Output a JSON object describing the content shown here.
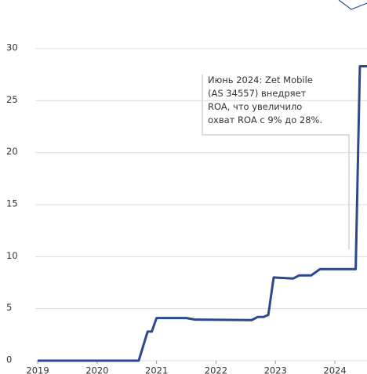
{
  "chart_data": {
    "type": "line",
    "annotation": [
      "Июнь 2024: Zet Mobile",
      "(AS 34557) внедряет",
      "ROA, что увеличило",
      "охват ROA с 9% до 28%."
    ],
    "x": [
      2019.0,
      2020.7,
      2020.85,
      2020.92,
      2021.0,
      2021.5,
      2021.65,
      2022.6,
      2022.7,
      2022.8,
      2022.88,
      2022.97,
      2023.3,
      2023.4,
      2023.6,
      2023.75,
      2024.1,
      2024.35,
      2024.42,
      2024.54
    ],
    "series": [
      {
        "color": "#2b4a8e",
        "values": [
          0,
          0,
          2.8,
          2.8,
          4.1,
          4.1,
          3.95,
          3.9,
          4.2,
          4.2,
          4.4,
          8.0,
          7.9,
          8.2,
          8.2,
          8.8,
          8.8,
          8.8,
          28.3,
          28.3
        ]
      }
    ],
    "xlim": [
      2018.96,
      2024.54
    ],
    "xticks": [
      2019,
      2020,
      2021,
      2022,
      2023,
      2024
    ],
    "ylim": [
      0,
      30
    ],
    "yticks": [
      0,
      5,
      10,
      15,
      20,
      25,
      30
    ],
    "grid": true
  }
}
